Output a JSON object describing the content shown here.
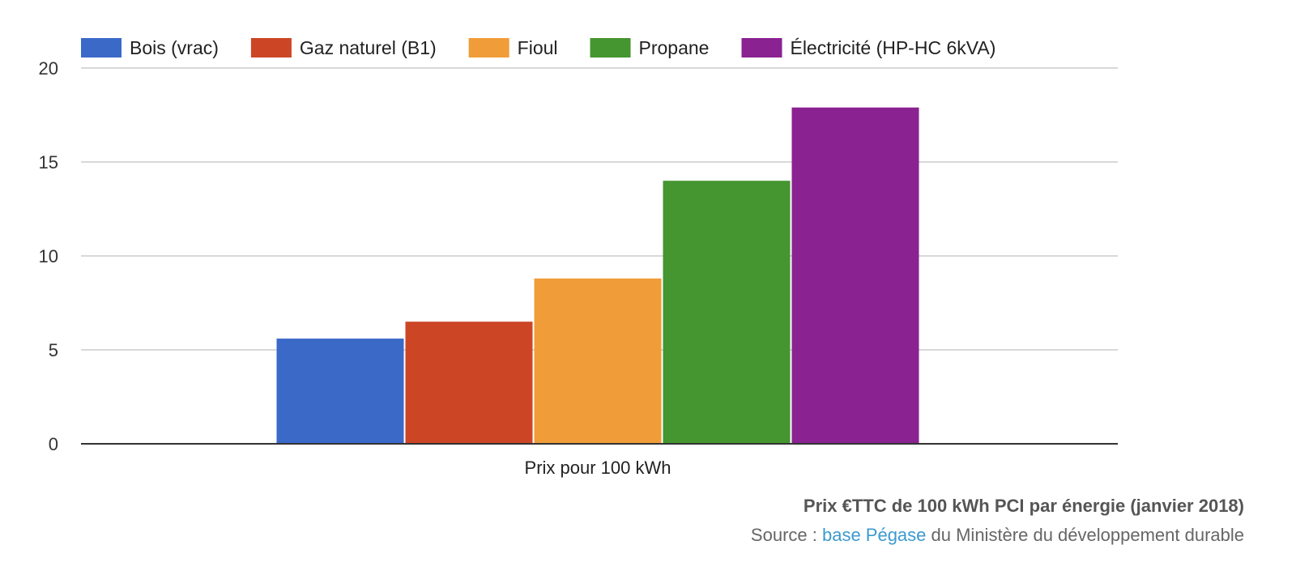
{
  "chart_data": {
    "type": "bar",
    "categories": [
      "Prix pour 100 kWh"
    ],
    "series": [
      {
        "name": "Bois (vrac)",
        "values": [
          5.6
        ],
        "color": "#3b69c8"
      },
      {
        "name": "Gaz naturel (B1)",
        "values": [
          6.5
        ],
        "color": "#cc4626"
      },
      {
        "name": "Fioul",
        "values": [
          8.8
        ],
        "color": "#f09c38"
      },
      {
        "name": "Propane",
        "values": [
          14.0
        ],
        "color": "#459530"
      },
      {
        "name": "Électricité (HP-HC 6kVA)",
        "values": [
          17.9
        ],
        "color": "#8a2291"
      }
    ],
    "ylim": [
      0,
      20
    ],
    "yticks": [
      0,
      5,
      10,
      15,
      20
    ],
    "grid": true,
    "legend_position": "top-left"
  },
  "caption": {
    "title": "Prix €TTC de 100 kWh PCI par énergie (janvier 2018)",
    "source_prefix": "Source : ",
    "source_link": "base Pégase",
    "source_suffix": " du Ministère du développement durable"
  }
}
